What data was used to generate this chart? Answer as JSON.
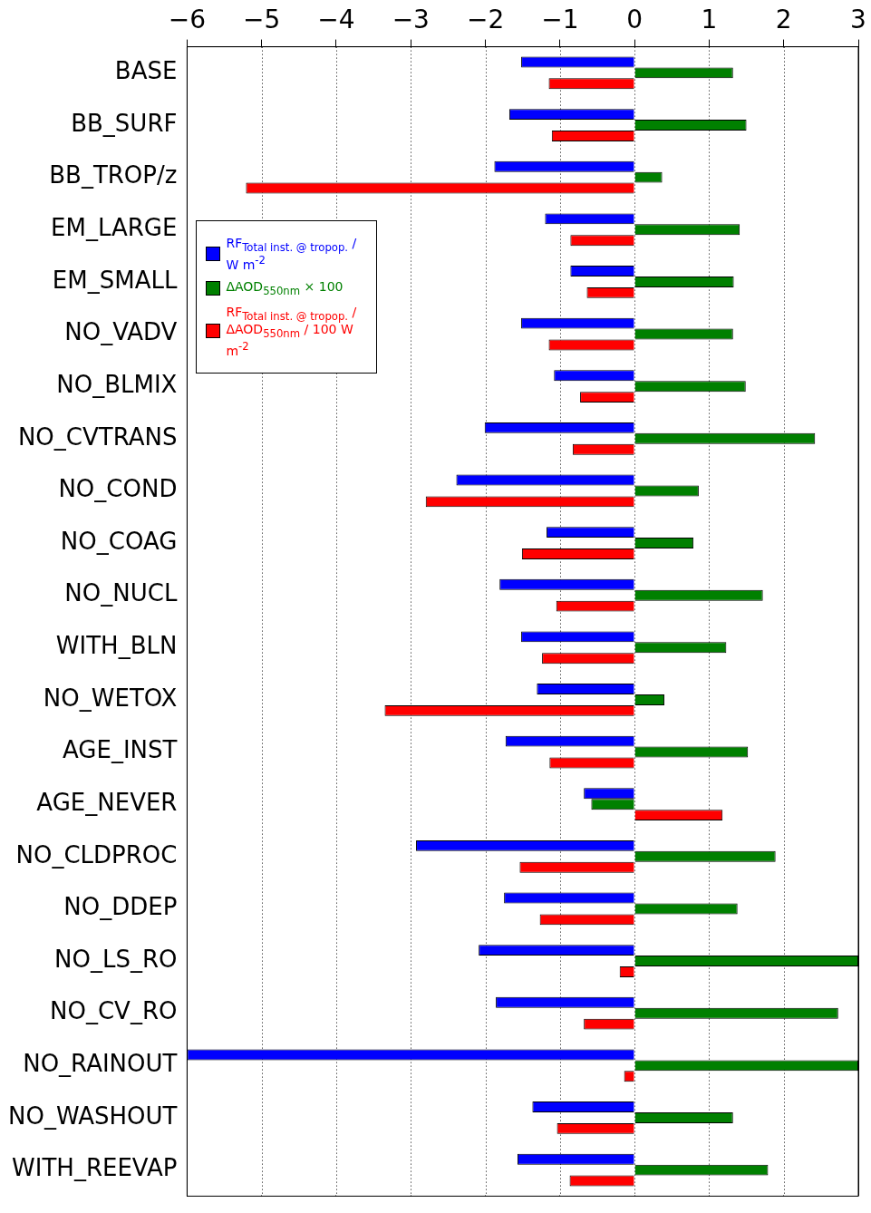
{
  "chart_data": {
    "type": "bar",
    "orientation": "horizontal",
    "categories": [
      "BASE",
      "BB_SURF",
      "BB_TROP/z",
      "EM_LARGE",
      "EM_SMALL",
      "NO_VADV",
      "NO_BLMIX",
      "NO_CVTRANS",
      "NO_COND",
      "NO_COAG",
      "NO_NUCL",
      "WITH_BLN",
      "NO_WETOX",
      "AGE_INST",
      "AGE_NEVER",
      "NO_CLDPROC",
      "NO_DDEP",
      "NO_LS_RO",
      "NO_CV_RO",
      "NO_RAINOUT",
      "NO_WASHOUT",
      "WITH_REEVAP"
    ],
    "series": [
      {
        "name": "RF$_{Total inst. @ tropop.}$ / W m$^{-2}$",
        "color": "#0000ff",
        "values": [
          -1.52,
          -1.68,
          -1.88,
          -1.2,
          -0.86,
          -1.52,
          -1.08,
          -2.01,
          -2.39,
          -1.18,
          -1.81,
          -1.52,
          -1.31,
          -1.73,
          -0.68,
          -2.93,
          -1.75,
          -2.09,
          -1.86,
          -6,
          -1.37,
          -1.57
        ]
      },
      {
        "name": "ΔAOD$_{550nm}$ × 100",
        "color": "#008000",
        "values": [
          1.32,
          1.5,
          0.37,
          1.41,
          1.33,
          1.32,
          1.49,
          2.42,
          0.86,
          0.79,
          1.72,
          1.23,
          0.4,
          1.52,
          -0.58,
          1.89,
          1.38,
          3,
          2.73,
          3,
          1.32,
          1.79
        ]
      },
      {
        "name": "RF$_{Total inst. @ tropop.}$ / ΔAOD$_{550nm}$ / 100 W m$^{-2}$",
        "color": "#ff0000",
        "values": [
          -1.15,
          -1.11,
          -5.21,
          -0.86,
          -0.64,
          -1.15,
          -0.73,
          -0.83,
          -2.8,
          -1.51,
          -1.05,
          -1.24,
          -3.35,
          -1.14,
          1.18,
          -1.54,
          -1.27,
          -0.2,
          -0.68,
          -0.14,
          -1.04,
          -0.87
        ]
      }
    ],
    "xlim": [
      -6,
      3
    ],
    "xticks": [
      -6,
      -5,
      -4,
      -3,
      -2,
      -1,
      0,
      1,
      2,
      3
    ],
    "grid": "x",
    "legend": "left"
  }
}
